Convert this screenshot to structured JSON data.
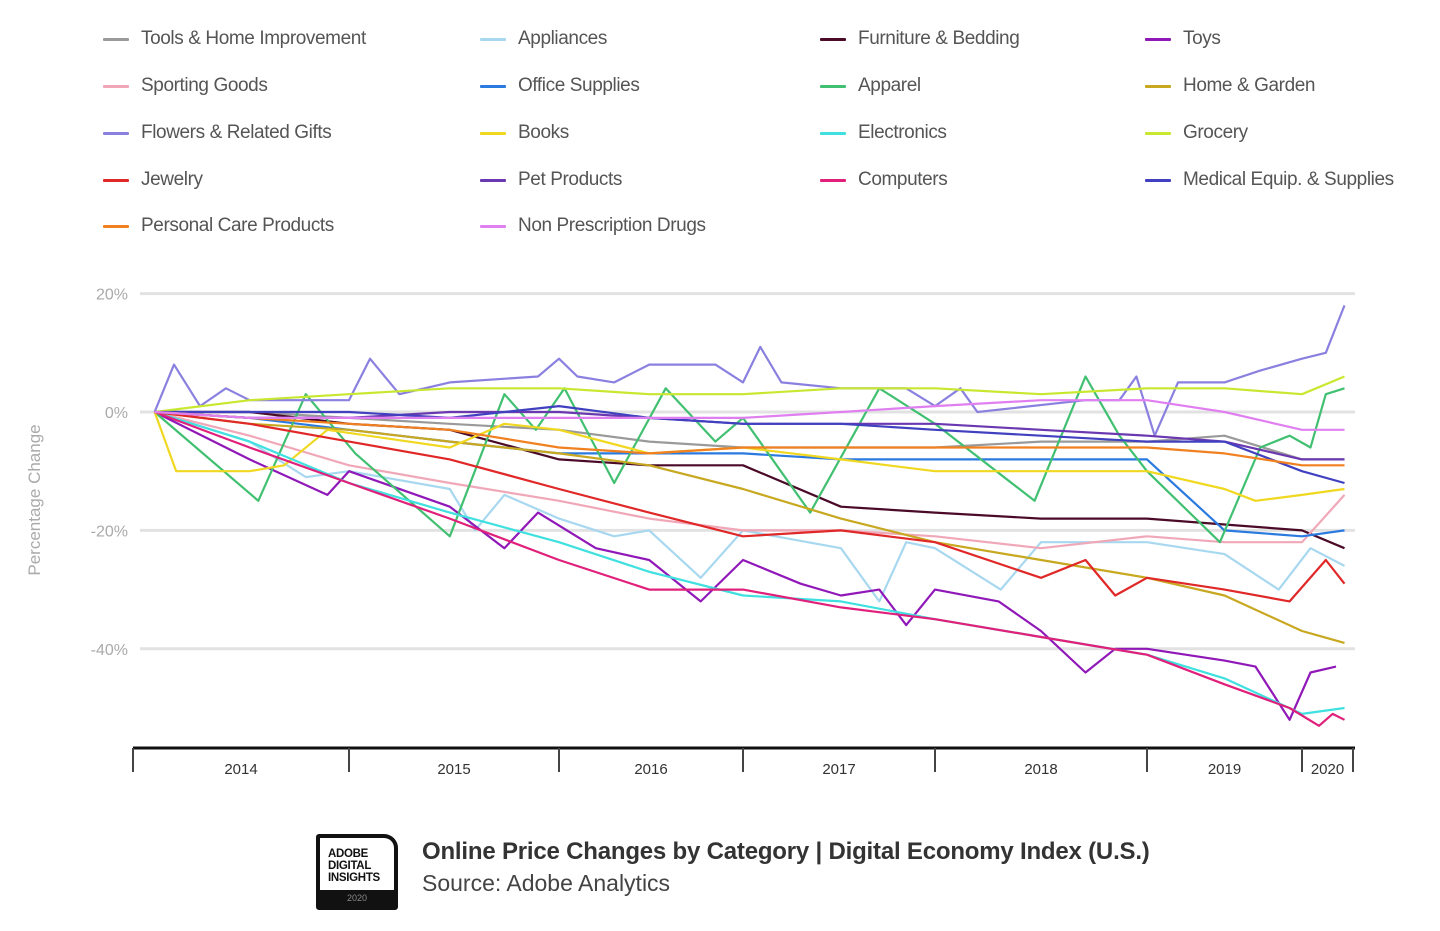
{
  "chart_data": {
    "type": "line",
    "title": "Online Price Changes by Category | Digital Economy Index (U.S.)",
    "source": "Source: Adobe Analytics",
    "xlabel": "",
    "ylabel": "Percentage Change",
    "ylim": [
      -55,
      20
    ],
    "yticks": [
      20,
      0,
      -20,
      -40
    ],
    "ytick_labels": [
      "20%",
      "0%",
      "-20%",
      "-40%"
    ],
    "xtick_labels": [
      "2014",
      "2015",
      "2016",
      "2017",
      "2018",
      "2019",
      "2020"
    ],
    "grid": true,
    "legend_position": "top",
    "x_grid": [
      2014.1,
      2014.54,
      2015.0,
      2015.48,
      2016.0,
      2016.49,
      2017.0,
      2017.51,
      2018.0,
      2018.5,
      2019.0,
      2019.5,
      2020.0,
      2020.25
    ],
    "series": [
      {
        "name": "Tools & Home Improvement",
        "color": "#9a9a9a",
        "values": [
          0,
          0,
          -1,
          -2,
          -3,
          -5,
          -6,
          -6,
          -6,
          -5,
          -5,
          -4,
          -8,
          -8
        ]
      },
      {
        "name": "Appliances",
        "color": "#a8d8f0",
        "points": [
          [
            2014.1,
            0
          ],
          [
            2014.54,
            -5
          ],
          [
            2014.8,
            -11
          ],
          [
            2015.0,
            -10
          ],
          [
            2015.48,
            -13
          ],
          [
            2015.6,
            -20
          ],
          [
            2015.74,
            -14
          ],
          [
            2016.0,
            -18
          ],
          [
            2016.3,
            -21
          ],
          [
            2016.49,
            -20
          ],
          [
            2016.77,
            -28
          ],
          [
            2017.0,
            -20
          ],
          [
            2017.51,
            -23
          ],
          [
            2017.71,
            -32
          ],
          [
            2017.85,
            -22
          ],
          [
            2018.0,
            -23
          ],
          [
            2018.31,
            -30
          ],
          [
            2018.5,
            -22
          ],
          [
            2019.0,
            -22
          ],
          [
            2019.5,
            -24
          ],
          [
            2019.85,
            -30
          ],
          [
            2020.05,
            -23
          ],
          [
            2020.25,
            -26
          ]
        ]
      },
      {
        "name": "Furniture & Bedding",
        "color": "#4a0a28",
        "values": [
          0,
          0,
          -2,
          -3,
          -8,
          -9,
          -9,
          -16,
          -17,
          -18,
          -18,
          -19,
          -20,
          -23
        ]
      },
      {
        "name": "Toys",
        "color": "#9018b8",
        "points": [
          [
            2014.1,
            0
          ],
          [
            2014.54,
            -8
          ],
          [
            2014.9,
            -14
          ],
          [
            2015.0,
            -10
          ],
          [
            2015.48,
            -16
          ],
          [
            2015.74,
            -23
          ],
          [
            2015.9,
            -17
          ],
          [
            2016.2,
            -23
          ],
          [
            2016.49,
            -25
          ],
          [
            2016.77,
            -32
          ],
          [
            2017.0,
            -25
          ],
          [
            2017.3,
            -29
          ],
          [
            2017.51,
            -31
          ],
          [
            2017.71,
            -30
          ],
          [
            2017.85,
            -36
          ],
          [
            2018.0,
            -30
          ],
          [
            2018.3,
            -32
          ],
          [
            2018.5,
            -37
          ],
          [
            2018.71,
            -44
          ],
          [
            2018.85,
            -40
          ],
          [
            2019.0,
            -40
          ],
          [
            2019.5,
            -42
          ],
          [
            2019.7,
            -43
          ],
          [
            2019.92,
            -52
          ],
          [
            2020.05,
            -44
          ],
          [
            2020.2,
            -43
          ]
        ]
      },
      {
        "name": "Sporting Goods",
        "color": "#f0a8b8",
        "values": [
          0,
          -4,
          -9,
          -12,
          -15,
          -18,
          -20,
          -20,
          -21,
          -23,
          -21,
          -22,
          -22,
          -14
        ]
      },
      {
        "name": "Office Supplies",
        "color": "#2a7ae0",
        "values": [
          0,
          -1,
          -3,
          -5,
          -7,
          -7,
          -7,
          -8,
          -8,
          -8,
          -8,
          -20,
          -21,
          -20
        ]
      },
      {
        "name": "Apparel",
        "color": "#40c070",
        "points": [
          [
            2014.1,
            0
          ],
          [
            2014.58,
            -15
          ],
          [
            2014.8,
            3
          ],
          [
            2015.03,
            -7
          ],
          [
            2015.48,
            -21
          ],
          [
            2015.74,
            3
          ],
          [
            2015.89,
            -3
          ],
          [
            2016.03,
            4
          ],
          [
            2016.3,
            -12
          ],
          [
            2016.58,
            4
          ],
          [
            2016.85,
            -5
          ],
          [
            2017.0,
            -1
          ],
          [
            2017.35,
            -17
          ],
          [
            2017.71,
            4
          ],
          [
            2018.0,
            -2
          ],
          [
            2018.47,
            -15
          ],
          [
            2018.71,
            6
          ],
          [
            2018.87,
            -4
          ],
          [
            2019.0,
            -10
          ],
          [
            2019.47,
            -22
          ],
          [
            2019.73,
            -6
          ],
          [
            2019.92,
            -4
          ],
          [
            2020.05,
            -6
          ],
          [
            2020.14,
            3
          ],
          [
            2020.25,
            4
          ]
        ]
      },
      {
        "name": "Home & Garden",
        "color": "#c8a820",
        "values": [
          0,
          -2,
          -3,
          -5,
          -7,
          -9,
          -13,
          -18,
          -22,
          -25,
          -28,
          -31,
          -37,
          -39
        ]
      },
      {
        "name": "Flowers & Related Gifts",
        "color": "#8a80e0",
        "points": [
          [
            2014.1,
            0
          ],
          [
            2014.19,
            8
          ],
          [
            2014.31,
            1
          ],
          [
            2014.43,
            4
          ],
          [
            2014.54,
            2
          ],
          [
            2015.0,
            2
          ],
          [
            2015.1,
            9
          ],
          [
            2015.24,
            3
          ],
          [
            2015.48,
            5
          ],
          [
            2015.9,
            6
          ],
          [
            2016.0,
            9
          ],
          [
            2016.1,
            6
          ],
          [
            2016.3,
            5
          ],
          [
            2016.49,
            8
          ],
          [
            2016.85,
            8
          ],
          [
            2017.0,
            5
          ],
          [
            2017.09,
            11
          ],
          [
            2017.2,
            5
          ],
          [
            2017.51,
            4
          ],
          [
            2017.85,
            4
          ],
          [
            2018.0,
            1
          ],
          [
            2018.12,
            4
          ],
          [
            2018.2,
            0
          ],
          [
            2018.71,
            2
          ],
          [
            2018.87,
            2
          ],
          [
            2018.95,
            6
          ],
          [
            2019.05,
            -4
          ],
          [
            2019.2,
            5
          ],
          [
            2019.5,
            5
          ],
          [
            2019.73,
            7
          ],
          [
            2020.0,
            9
          ],
          [
            2020.14,
            10
          ],
          [
            2020.25,
            18
          ]
        ]
      },
      {
        "name": "Books",
        "color": "#f0d820",
        "points": [
          [
            2014.1,
            0
          ],
          [
            2014.2,
            -10
          ],
          [
            2014.54,
            -10
          ],
          [
            2014.7,
            -9
          ],
          [
            2014.9,
            -3
          ],
          [
            2015.48,
            -6
          ],
          [
            2015.74,
            -2
          ],
          [
            2016.0,
            -3
          ],
          [
            2016.49,
            -7
          ],
          [
            2017.0,
            -6
          ],
          [
            2017.51,
            -8
          ],
          [
            2018.0,
            -10
          ],
          [
            2018.5,
            -10
          ],
          [
            2019.0,
            -10
          ],
          [
            2019.5,
            -13
          ],
          [
            2019.7,
            -15
          ],
          [
            2020.0,
            -14
          ],
          [
            2020.25,
            -13
          ]
        ]
      },
      {
        "name": "Electronics",
        "color": "#40e0e0",
        "values": [
          0,
          -5,
          -12,
          -17,
          -22,
          -27,
          -31,
          -32,
          -35,
          -38,
          -41,
          -45,
          -51,
          -50
        ]
      },
      {
        "name": "Grocery",
        "color": "#c8e830",
        "values": [
          0,
          2,
          3,
          4,
          4,
          3,
          3,
          4,
          4,
          3,
          4,
          4,
          3,
          6
        ]
      },
      {
        "name": "Jewelry",
        "color": "#e02828",
        "points": [
          [
            2014.1,
            0
          ],
          [
            2014.54,
            -2
          ],
          [
            2015.0,
            -5
          ],
          [
            2015.48,
            -8
          ],
          [
            2016.0,
            -13
          ],
          [
            2016.49,
            -17
          ],
          [
            2017.0,
            -21
          ],
          [
            2017.51,
            -20
          ],
          [
            2018.0,
            -22
          ],
          [
            2018.5,
            -28
          ],
          [
            2018.71,
            -25
          ],
          [
            2018.85,
            -31
          ],
          [
            2019.0,
            -28
          ],
          [
            2019.5,
            -30
          ],
          [
            2019.92,
            -32
          ],
          [
            2020.14,
            -25
          ],
          [
            2020.25,
            -29
          ]
        ]
      },
      {
        "name": "Pet Products",
        "color": "#6a38b0",
        "values": [
          0,
          -1,
          -1,
          0,
          0,
          -1,
          -2,
          -2,
          -2,
          -3,
          -4,
          -5,
          -8,
          -8
        ]
      },
      {
        "name": "Computers",
        "color": "#e0207a",
        "points": [
          [
            2014.1,
            0
          ],
          [
            2014.54,
            -6
          ],
          [
            2015.0,
            -12
          ],
          [
            2015.48,
            -18
          ],
          [
            2016.0,
            -25
          ],
          [
            2016.49,
            -30
          ],
          [
            2017.0,
            -30
          ],
          [
            2017.51,
            -33
          ],
          [
            2018.0,
            -35
          ],
          [
            2018.5,
            -38
          ],
          [
            2019.0,
            -41
          ],
          [
            2019.5,
            -46
          ],
          [
            2019.92,
            -50
          ],
          [
            2020.1,
            -53
          ],
          [
            2020.18,
            -51
          ],
          [
            2020.25,
            -52
          ]
        ]
      },
      {
        "name": "Medical Equip. & Supplies",
        "color": "#4040c0",
        "values": [
          0,
          0,
          0,
          -1,
          1,
          -1,
          -2,
          -2,
          -3,
          -4,
          -5,
          -5,
          -10,
          -12
        ]
      },
      {
        "name": "Personal Care Products",
        "color": "#f08020",
        "values": [
          0,
          -1,
          -2,
          -3,
          -6,
          -7,
          -6,
          -6,
          -6,
          -6,
          -6,
          -7,
          -9,
          -9
        ]
      },
      {
        "name": "Non Prescription Drugs",
        "color": "#e080f0",
        "values": [
          0,
          -1,
          -1,
          -1,
          -1,
          -1,
          -1,
          0,
          1,
          2,
          2,
          0,
          -3,
          -3
        ]
      }
    ]
  },
  "logo": {
    "lines": [
      "ADOBE",
      "DIGITAL",
      "INSIGHTS"
    ],
    "year": "2020"
  }
}
